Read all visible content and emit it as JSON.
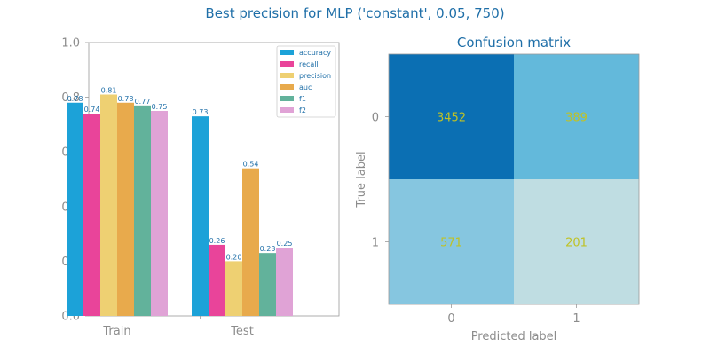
{
  "figure": {
    "title": "Best precision for MLP ('constant', 0.05, 750)",
    "title_color": "#1f6fa8"
  },
  "chart_data": [
    {
      "type": "bar",
      "title": "",
      "xlabel": "",
      "ylabel": "",
      "categories": [
        "Train",
        "Test"
      ],
      "ylim": [
        0,
        1.0
      ],
      "yticks": [
        "0.0",
        "0.2",
        "0.4",
        "0.6",
        "0.8",
        "1.0"
      ],
      "grid": false,
      "legend_position": "top-right",
      "series": [
        {
          "name": "accuracy",
          "color": "#1ca2d8",
          "values": [
            0.78,
            0.73
          ],
          "labels": [
            "0.78",
            "0.73"
          ]
        },
        {
          "name": "recall",
          "color": "#e9449a",
          "values": [
            0.74,
            0.26
          ],
          "labels": [
            "0.74",
            "0.26"
          ]
        },
        {
          "name": "precision",
          "color": "#eed072",
          "values": [
            0.81,
            0.2
          ],
          "labels": [
            "0.81",
            "0.20"
          ]
        },
        {
          "name": "auc",
          "color": "#e8aa4c",
          "values": [
            0.78,
            0.54
          ],
          "labels": [
            "0.78",
            "0.54"
          ]
        },
        {
          "name": "f1",
          "color": "#62b29b",
          "values": [
            0.77,
            0.23
          ],
          "labels": [
            "0.77",
            "0.23"
          ]
        },
        {
          "name": "f2",
          "color": "#e0a3d6",
          "values": [
            0.75,
            0.25
          ],
          "labels": [
            "0.75",
            "0.25"
          ]
        }
      ],
      "value_label_color": "#1f6fa8"
    },
    {
      "type": "heatmap",
      "title": "Confusion matrix",
      "xlabel": "Predicted label",
      "ylabel": "True label",
      "x_ticks": [
        "0",
        "1"
      ],
      "y_ticks": [
        "0",
        "1"
      ],
      "matrix": [
        [
          3452,
          389
        ],
        [
          571,
          201
        ]
      ],
      "cell_labels": [
        [
          "3452",
          "389"
        ],
        [
          "571",
          "201"
        ]
      ],
      "cell_colors": [
        [
          "#0b6fb3",
          "#63b9db"
        ],
        [
          "#86c6e0",
          "#bfdde2"
        ]
      ],
      "text_color": "#bfc226"
    }
  ]
}
